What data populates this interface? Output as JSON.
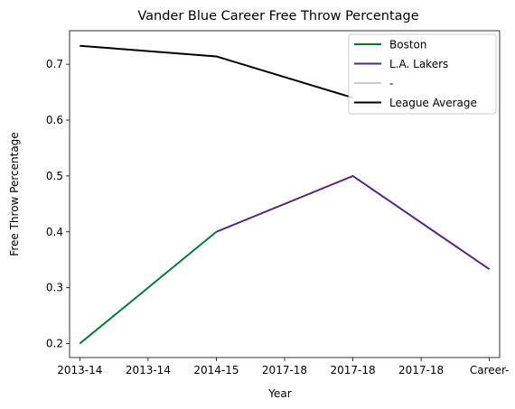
{
  "chart_data": {
    "type": "line",
    "title": "Vander Blue Career Free Throw Percentage",
    "xlabel": "Year",
    "ylabel": "Free Throw Percentage",
    "categories": [
      "2013-14",
      "2013-14",
      "2014-15",
      "2017-18",
      "2017-18",
      "2017-18",
      "Career-"
    ],
    "ylim": [
      0.175,
      0.76
    ],
    "yticks": [
      0.2,
      0.3,
      0.4,
      0.5,
      0.6,
      0.7
    ],
    "ytick_labels": [
      "0.2",
      "0.3",
      "0.4",
      "0.5",
      "0.6",
      "0.7"
    ],
    "grid": false,
    "legend_position": "top-right",
    "series": [
      {
        "name": "Boston",
        "color": "#007A33",
        "points": [
          [
            0,
            0.2
          ],
          [
            2,
            0.4
          ]
        ]
      },
      {
        "name": "L.A. Lakers",
        "color": "#552583",
        "points": [
          [
            2,
            0.4
          ],
          [
            4,
            0.5
          ],
          [
            6,
            0.333
          ]
        ]
      },
      {
        "name": "-",
        "color": "#C4CED4",
        "points": []
      },
      {
        "name": "League Average",
        "color": "#000000",
        "points": [
          [
            0,
            0.733
          ],
          [
            2,
            0.714
          ],
          [
            4,
            0.64
          ]
        ]
      }
    ]
  }
}
